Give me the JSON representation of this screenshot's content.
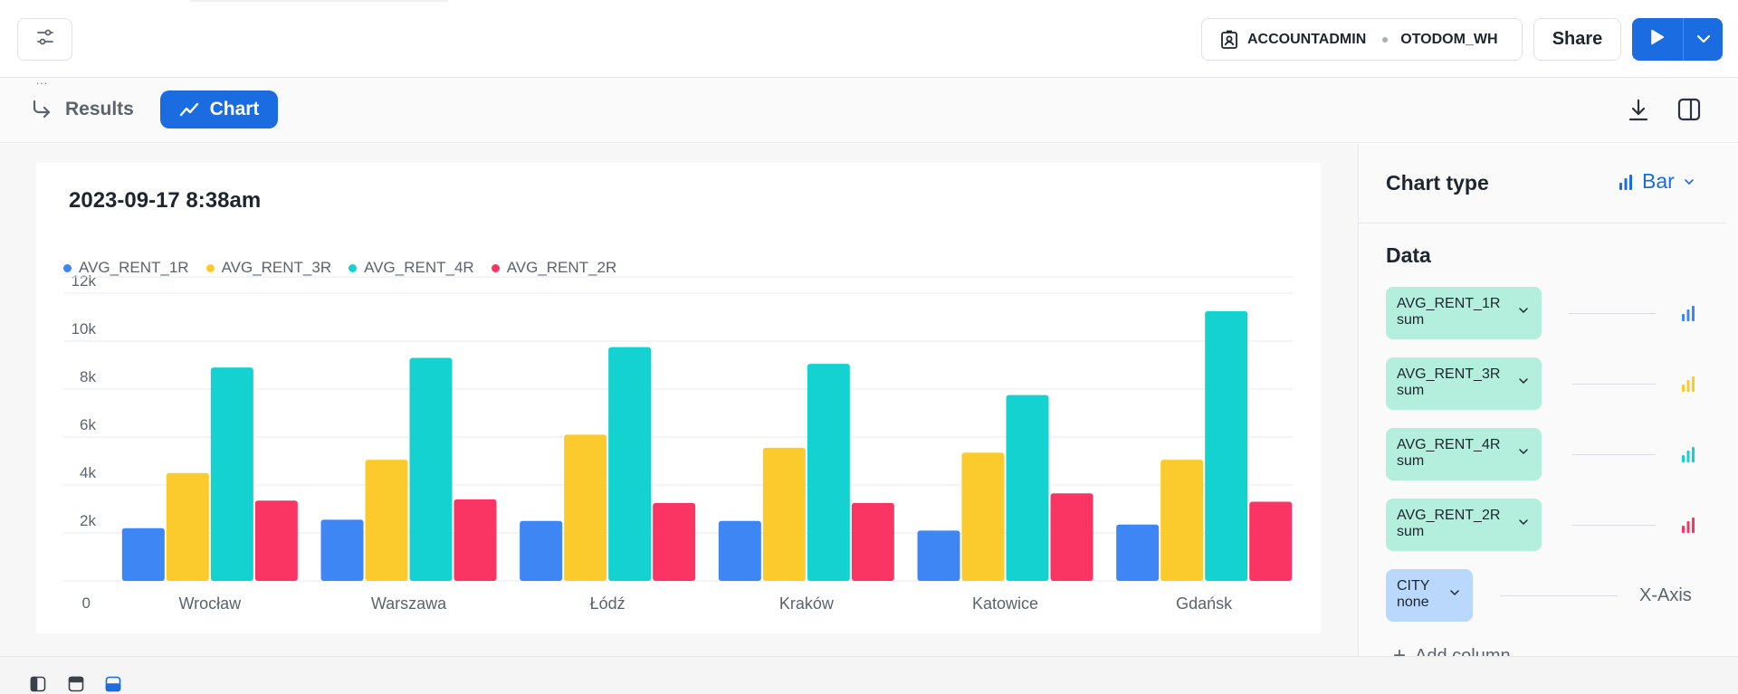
{
  "topbar": {
    "role": "ACCOUNTADMIN",
    "warehouse": "OTODOM_WH",
    "share_label": "Share"
  },
  "tabs": {
    "results_label": "Results",
    "chart_label": "Chart",
    "ghost_text": "..."
  },
  "chart_panel": {
    "type_label": "Chart type",
    "type_value": "Bar",
    "data_label": "Data",
    "columns": [
      {
        "name": "AVG_RENT_1R",
        "agg": "sum",
        "color": "#3f86f5"
      },
      {
        "name": "AVG_RENT_3R",
        "agg": "sum",
        "color": "#fbcb2e"
      },
      {
        "name": "AVG_RENT_4R",
        "agg": "sum",
        "color": "#14d2cf"
      },
      {
        "name": "AVG_RENT_2R",
        "agg": "sum",
        "color": "#fb3563"
      }
    ],
    "x_column": {
      "name": "CITY",
      "agg": "none",
      "role_label": "X-Axis"
    },
    "add_column_label": "Add column"
  },
  "chart_data": {
    "type": "bar",
    "title": "2023-09-17 8:38am",
    "categories": [
      "Wrocław",
      "Warszawa",
      "Łódź",
      "Kraków",
      "Katowice",
      "Gdańsk"
    ],
    "series": [
      {
        "name": "AVG_RENT_1R",
        "color": "#3f86f5",
        "values": [
          2200,
          2550,
          2500,
          2500,
          2100,
          2350
        ]
      },
      {
        "name": "AVG_RENT_3R",
        "color": "#fbcb2e",
        "values": [
          4500,
          5050,
          6100,
          5550,
          5350,
          5050
        ]
      },
      {
        "name": "AVG_RENT_4R",
        "color": "#14d2cf",
        "values": [
          8900,
          9300,
          9750,
          9050,
          7750,
          11250
        ]
      },
      {
        "name": "AVG_RENT_2R",
        "color": "#fb3563",
        "values": [
          3350,
          3400,
          3250,
          3250,
          3650,
          3300
        ]
      }
    ],
    "yticks": [
      {
        "value": 0,
        "label": "0"
      },
      {
        "value": 2000,
        "label": "2k"
      },
      {
        "value": 4000,
        "label": "4k"
      },
      {
        "value": 6000,
        "label": "6k"
      },
      {
        "value": 8000,
        "label": "8k"
      },
      {
        "value": 10000,
        "label": "10k"
      },
      {
        "value": 12000,
        "label": "12k"
      }
    ],
    "ylim": [
      0,
      12000
    ],
    "grid": true,
    "legend": "top-left"
  }
}
